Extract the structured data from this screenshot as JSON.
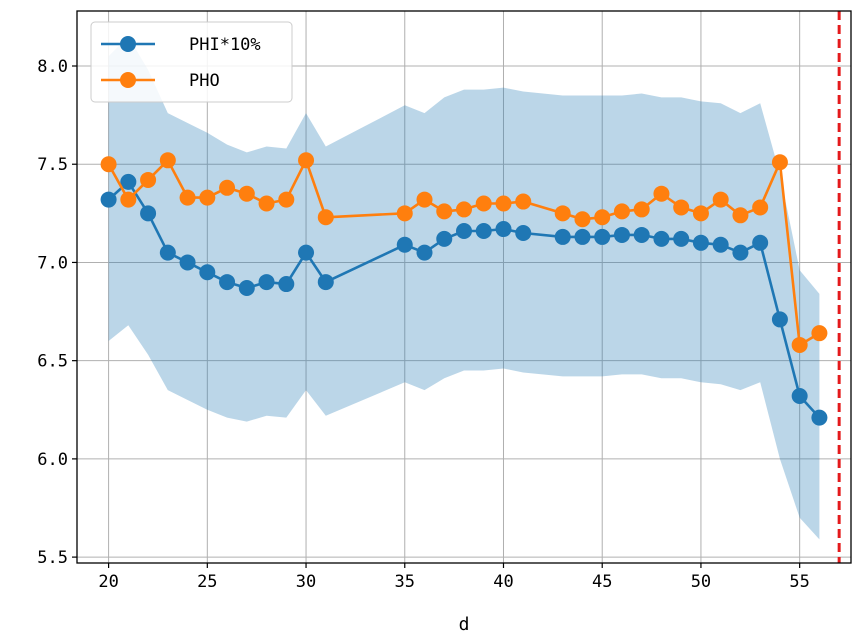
{
  "chart_data": {
    "type": "line",
    "xlabel": "d",
    "ylabel": "",
    "xlim": [
      18.4,
      57.6
    ],
    "ylim": [
      5.47,
      8.28
    ],
    "xticks": [
      20,
      25,
      30,
      35,
      40,
      45,
      50,
      55
    ],
    "yticks": [
      5.5,
      6.0,
      6.5,
      7.0,
      7.5,
      8.0
    ],
    "ytick_labels": [
      "5.5",
      "6.0",
      "6.5",
      "7.0",
      "7.5",
      "8.0"
    ],
    "grid": true,
    "legend_position": "top-left",
    "vline": {
      "x": 57,
      "color": "#e41a1c",
      "style": "dashed"
    },
    "series": [
      {
        "name": "PHI*10%",
        "color": "#1f77b4",
        "x": [
          20,
          21,
          22,
          23,
          24,
          25,
          26,
          27,
          28,
          29,
          30,
          31,
          35,
          36,
          37,
          38,
          39,
          40,
          41,
          43,
          44,
          45,
          46,
          47,
          48,
          49,
          50,
          51,
          52,
          53,
          54,
          55,
          56
        ],
        "y": [
          7.32,
          7.41,
          7.25,
          7.05,
          7.0,
          6.95,
          6.9,
          6.87,
          6.9,
          6.89,
          7.05,
          6.9,
          7.09,
          7.05,
          7.12,
          7.16,
          7.16,
          7.17,
          7.15,
          7.13,
          7.13,
          7.13,
          7.14,
          7.14,
          7.12,
          7.12,
          7.1,
          7.09,
          7.05,
          7.1,
          6.71,
          6.32,
          6.21
        ]
      },
      {
        "name": "PHO",
        "color": "#ff7f0e",
        "x": [
          20,
          21,
          22,
          23,
          24,
          25,
          26,
          27,
          28,
          29,
          30,
          31,
          35,
          36,
          37,
          38,
          39,
          40,
          41,
          43,
          44,
          45,
          46,
          47,
          48,
          49,
          50,
          51,
          52,
          53,
          54,
          55,
          56
        ],
        "y": [
          7.5,
          7.32,
          7.42,
          7.52,
          7.33,
          7.33,
          7.38,
          7.35,
          7.3,
          7.32,
          7.52,
          7.23,
          7.25,
          7.32,
          7.26,
          7.27,
          7.3,
          7.3,
          7.31,
          7.25,
          7.22,
          7.23,
          7.26,
          7.27,
          7.35,
          7.28,
          7.25,
          7.32,
          7.24,
          7.28,
          7.51,
          6.58,
          6.64
        ]
      }
    ],
    "band": {
      "color": "#1f77b4",
      "x": [
        20,
        21,
        22,
        23,
        24,
        25,
        26,
        27,
        28,
        29,
        30,
        31,
        35,
        36,
        37,
        38,
        39,
        40,
        41,
        43,
        44,
        45,
        46,
        47,
        48,
        49,
        50,
        51,
        52,
        53,
        54,
        55,
        56
      ],
      "upper": [
        8.05,
        8.15,
        7.98,
        7.76,
        7.71,
        7.66,
        7.6,
        7.56,
        7.59,
        7.58,
        7.76,
        7.59,
        7.8,
        7.76,
        7.84,
        7.88,
        7.88,
        7.89,
        7.87,
        7.85,
        7.85,
        7.85,
        7.85,
        7.86,
        7.84,
        7.84,
        7.82,
        7.81,
        7.76,
        7.81,
        7.45,
        6.96,
        6.84
      ],
      "lower": [
        6.6,
        6.68,
        6.53,
        6.35,
        6.3,
        6.25,
        6.21,
        6.19,
        6.22,
        6.21,
        6.35,
        6.22,
        6.39,
        6.35,
        6.41,
        6.45,
        6.45,
        6.46,
        6.44,
        6.42,
        6.42,
        6.42,
        6.43,
        6.43,
        6.41,
        6.41,
        6.39,
        6.38,
        6.35,
        6.39,
        6.0,
        5.7,
        5.59
      ]
    }
  }
}
